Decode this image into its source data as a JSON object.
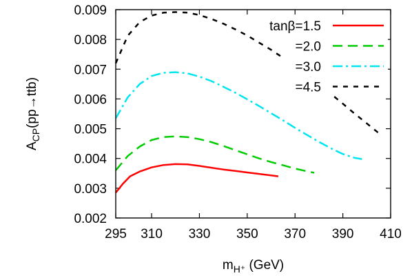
{
  "chart_data": {
    "type": "line",
    "xlabel": "m",
    "xlabel_sub": "H⁺",
    "xlabel_unit": " (GeV)",
    "ylabel": "A",
    "ylabel_sub": "CP",
    "ylabel_tail": "(pp→ttb)",
    "xlim": [
      295,
      410
    ],
    "ylim": [
      0.002,
      0.009
    ],
    "xticks": [
      295,
      310,
      330,
      350,
      370,
      390,
      410
    ],
    "yticks": [
      0.002,
      0.003,
      0.004,
      0.005,
      0.006,
      0.007,
      0.008,
      0.009
    ],
    "xtick_labels": [
      "295",
      "310",
      "330",
      "350",
      "370",
      "390",
      "410"
    ],
    "ytick_labels": [
      "0.002",
      "0.003",
      "0.004",
      "0.005",
      "0.006",
      "0.007",
      "0.008",
      "0.009"
    ],
    "grid": false,
    "legend_position": "top-right",
    "series": [
      {
        "name": "tanβ=1.5",
        "color": "#ff0000",
        "dash": "solid",
        "x": [
          295,
          298,
          301,
          305,
          310,
          315,
          320,
          325,
          330,
          335,
          340,
          345,
          350,
          355,
          360,
          363
        ],
        "y": [
          0.00285,
          0.00315,
          0.0034,
          0.00356,
          0.0037,
          0.00378,
          0.00381,
          0.0038,
          0.00375,
          0.00369,
          0.00363,
          0.00358,
          0.00353,
          0.00348,
          0.00343,
          0.0034
        ]
      },
      {
        "name": "=2.0",
        "color": "#00cc00",
        "dash": "long-dash",
        "x": [
          295,
          300,
          305,
          310,
          315,
          320,
          325,
          330,
          335,
          340,
          345,
          350,
          355,
          360,
          365,
          370,
          375,
          378
        ],
        "y": [
          0.0036,
          0.00408,
          0.0044,
          0.00462,
          0.00472,
          0.00474,
          0.00472,
          0.00465,
          0.00455,
          0.00442,
          0.00428,
          0.00414,
          0.004,
          0.00388,
          0.00377,
          0.00366,
          0.00357,
          0.00352
        ]
      },
      {
        "name": "=3.0",
        "color": "#00e5ee",
        "dash": "dash-dot",
        "x": [
          295,
          300,
          305,
          310,
          315,
          320,
          325,
          330,
          335,
          340,
          345,
          350,
          355,
          360,
          365,
          370,
          375,
          380,
          385,
          390,
          395,
          398
        ],
        "y": [
          0.00535,
          0.00605,
          0.0065,
          0.00677,
          0.00688,
          0.0069,
          0.00686,
          0.00675,
          0.0066,
          0.00641,
          0.00621,
          0.00599,
          0.00576,
          0.00552,
          0.00528,
          0.00503,
          0.00479,
          0.00456,
          0.00434,
          0.00415,
          0.00402,
          0.00398
        ]
      },
      {
        "name": "=4.5",
        "color": "#000000",
        "dash": "short-dash",
        "x": [
          295,
          300,
          305,
          310,
          315,
          320,
          325,
          330,
          335,
          340,
          345,
          350,
          355,
          360,
          365,
          370,
          375,
          380,
          385,
          390,
          395,
          400,
          405
        ],
        "y": [
          0.0072,
          0.00812,
          0.00858,
          0.0088,
          0.0089,
          0.00892,
          0.0089,
          0.00882,
          0.00869,
          0.00853,
          0.00834,
          0.00813,
          0.00789,
          0.00765,
          0.00738,
          0.00711,
          0.00681,
          0.0065,
          0.00617,
          0.00584,
          0.0055,
          0.00518,
          0.00485
        ]
      }
    ]
  }
}
